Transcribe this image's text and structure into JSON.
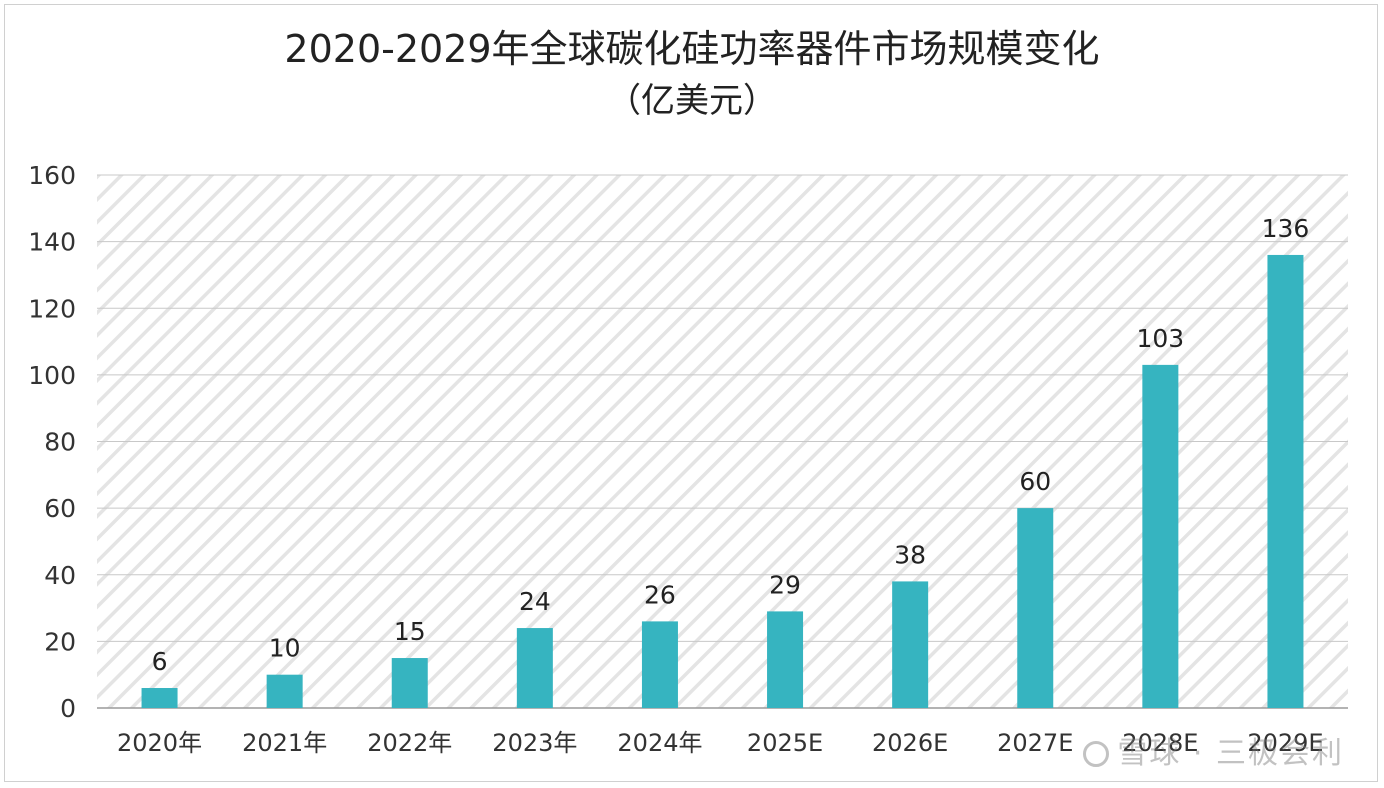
{
  "chart_data": {
    "type": "bar",
    "title": "2020-2029年全球碳化硅功率器件市场规模变化",
    "subtitle": "（亿美元）",
    "categories": [
      "2020年",
      "2021年",
      "2022年",
      "2023年",
      "2024年",
      "2025E",
      "2026E",
      "2027E",
      "2028E",
      "2029E"
    ],
    "values": [
      6,
      10,
      15,
      24,
      26,
      29,
      38,
      60,
      103,
      136
    ],
    "data_labels": [
      "6",
      "10",
      "15",
      "24",
      "26",
      "29",
      "38",
      "60",
      "103",
      "136"
    ],
    "ylim": [
      0,
      160
    ],
    "yticks": [
      0,
      20,
      40,
      60,
      80,
      100,
      120,
      140,
      160
    ],
    "ytick_labels": [
      "0",
      "20",
      "40",
      "60",
      "80",
      "100",
      "120",
      "140",
      "160"
    ],
    "grid": true,
    "legend": "none",
    "bar_color": "#36b4c0",
    "background_pattern": "diagonal-hatch"
  },
  "watermark": {
    "text": "雪球 · 三极会利",
    "icon": "snowball-logo-icon"
  }
}
